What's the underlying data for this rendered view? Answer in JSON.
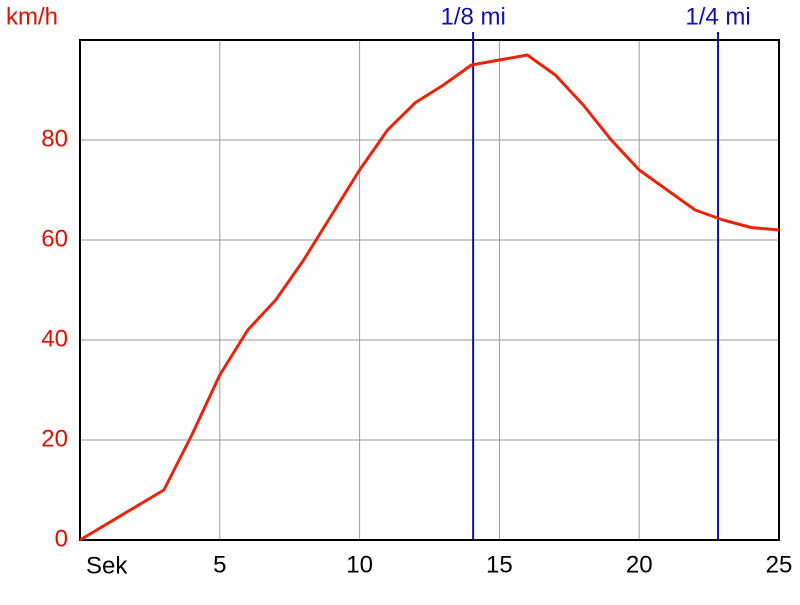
{
  "chart_data": {
    "type": "line",
    "x_label": "Sek",
    "y_label": "km/h",
    "x": [
      0,
      3,
      4,
      5,
      6,
      7,
      8,
      9,
      10,
      11,
      12,
      13,
      14,
      15,
      16,
      17,
      18,
      19,
      20,
      21,
      22,
      23,
      24,
      25
    ],
    "series": [
      {
        "color": "#e8250c",
        "values": [
          0,
          10,
          21,
          33,
          42,
          48,
          56,
          65,
          74,
          82,
          87.5,
          91,
          95,
          96,
          97,
          93,
          87,
          80,
          74,
          70,
          66,
          64,
          62.5,
          62
        ]
      }
    ],
    "xlim": [
      0,
      25
    ],
    "xticks": [
      5,
      10,
      15,
      20,
      25
    ],
    "ylim": [
      0,
      100
    ],
    "yticks": [
      0,
      20,
      40,
      60,
      80
    ],
    "grid": true,
    "markers": [
      {
        "label": "1/8 mi",
        "x": 14.06,
        "color": "#1010b0"
      },
      {
        "label": "1/4 mi",
        "x": 22.82,
        "color": "#1010b0"
      }
    ],
    "y_tick_color": "#dd1100",
    "x_tick_color": "#000000"
  }
}
